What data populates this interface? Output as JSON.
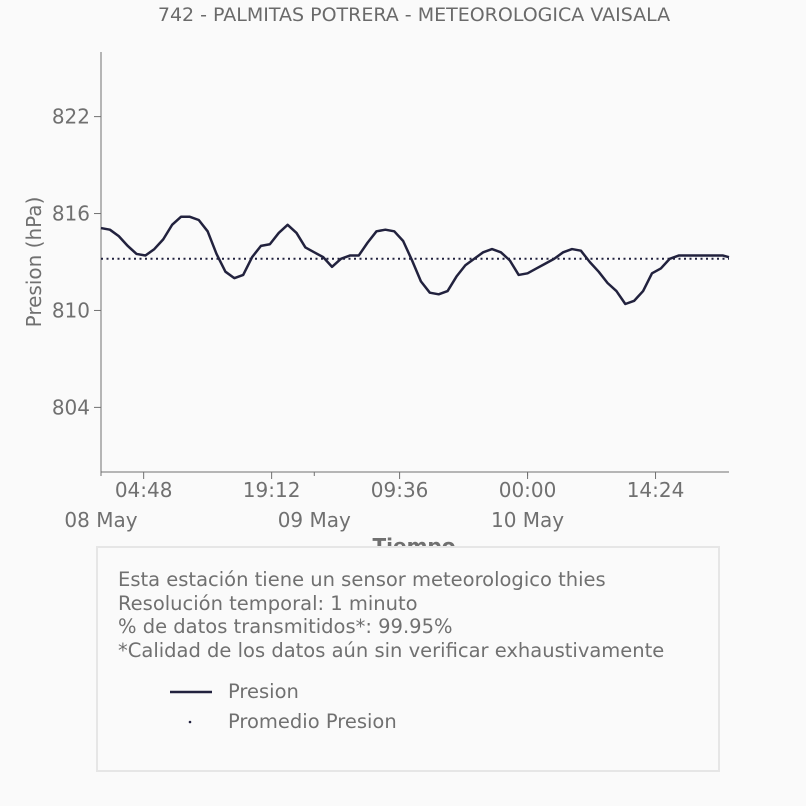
{
  "colors": {
    "line": "#22223e",
    "text": "#707070",
    "axis": "#707070",
    "box_border": "#e6e6e6"
  },
  "info": {
    "lines": [
      "Esta estación tiene un sensor meteorologico thies",
      "Resolución temporal: 1 minuto",
      "% de datos transmitidos*: 99.95%",
      "*Calidad de los datos aún sin verificar exhaustivamente"
    ]
  },
  "legend": {
    "series_label": "Presion",
    "mean_label": "Promedio Presion"
  },
  "chart_data": {
    "type": "line",
    "title": "742 - PALMITAS POTRERA - METEOROLOGICA VAISALA",
    "xlabel": "Tiempo",
    "ylabel": "Presion (hPa)",
    "ylim": [
      800,
      826
    ],
    "yticks": [
      804,
      810,
      816,
      822
    ],
    "xlim": [
      "2025-05-08 00:00",
      "2025-05-10 22:40"
    ],
    "xticks": [
      {
        "x": "2025-05-08 04:48",
        "label": "04:48"
      },
      {
        "x": "2025-05-08 19:12",
        "label": "19:12"
      },
      {
        "x": "2025-05-09 09:36",
        "label": "09:36"
      },
      {
        "x": "2025-05-10 00:00",
        "label": "00:00"
      },
      {
        "x": "2025-05-10 14:24",
        "label": "14:24"
      }
    ],
    "date_labels": [
      {
        "x": "2025-05-08 00:00",
        "label": "08 May"
      },
      {
        "x": "2025-05-09 00:00",
        "label": "09 May"
      },
      {
        "x": "2025-05-10 00:00",
        "label": "10 May"
      }
    ],
    "mean": 813.2,
    "grid": false,
    "legend_position": "below",
    "series": [
      {
        "name": "Presion",
        "x": [
          "2025-05-08 00:00",
          "2025-05-08 01:00",
          "2025-05-08 02:00",
          "2025-05-08 03:00",
          "2025-05-08 04:00",
          "2025-05-08 05:00",
          "2025-05-08 06:00",
          "2025-05-08 07:00",
          "2025-05-08 08:00",
          "2025-05-08 09:00",
          "2025-05-08 10:00",
          "2025-05-08 11:00",
          "2025-05-08 12:00",
          "2025-05-08 13:00",
          "2025-05-08 14:00",
          "2025-05-08 15:00",
          "2025-05-08 16:00",
          "2025-05-08 17:00",
          "2025-05-08 18:00",
          "2025-05-08 19:00",
          "2025-05-08 20:00",
          "2025-05-08 21:00",
          "2025-05-08 22:00",
          "2025-05-08 23:00",
          "2025-05-09 00:00",
          "2025-05-09 01:00",
          "2025-05-09 02:00",
          "2025-05-09 03:00",
          "2025-05-09 04:00",
          "2025-05-09 05:00",
          "2025-05-09 06:00",
          "2025-05-09 07:00",
          "2025-05-09 08:00",
          "2025-05-09 09:00",
          "2025-05-09 10:00",
          "2025-05-09 11:00",
          "2025-05-09 12:00",
          "2025-05-09 13:00",
          "2025-05-09 14:00",
          "2025-05-09 15:00",
          "2025-05-09 16:00",
          "2025-05-09 17:00",
          "2025-05-09 18:00",
          "2025-05-09 19:00",
          "2025-05-09 20:00",
          "2025-05-09 21:00",
          "2025-05-09 22:00",
          "2025-05-09 23:00",
          "2025-05-10 00:00",
          "2025-05-10 01:00",
          "2025-05-10 02:00",
          "2025-05-10 03:00",
          "2025-05-10 04:00",
          "2025-05-10 05:00",
          "2025-05-10 06:00",
          "2025-05-10 07:00",
          "2025-05-10 08:00",
          "2025-05-10 09:00",
          "2025-05-10 10:00",
          "2025-05-10 11:00",
          "2025-05-10 12:00",
          "2025-05-10 13:00",
          "2025-05-10 14:00",
          "2025-05-10 15:00",
          "2025-05-10 16:00",
          "2025-05-10 17:00",
          "2025-05-10 18:00",
          "2025-05-10 19:00",
          "2025-05-10 20:00",
          "2025-05-10 21:00",
          "2025-05-10 22:00",
          "2025-05-10 22:40"
        ],
        "values": [
          815.1,
          815.0,
          814.6,
          814.0,
          813.5,
          813.4,
          813.8,
          814.4,
          815.3,
          815.8,
          815.8,
          815.6,
          814.9,
          813.5,
          812.4,
          812.0,
          812.2,
          813.3,
          814.0,
          814.1,
          814.8,
          815.3,
          814.8,
          813.9,
          813.6,
          813.3,
          812.7,
          813.2,
          813.4,
          813.4,
          814.2,
          814.9,
          815.0,
          814.9,
          814.3,
          813.1,
          811.8,
          811.1,
          811.0,
          811.2,
          812.1,
          812.8,
          813.2,
          813.6,
          813.8,
          813.6,
          813.1,
          812.2,
          812.3,
          812.6,
          812.9,
          813.2,
          813.6,
          813.8,
          813.7,
          813.0,
          812.4,
          811.7,
          811.2,
          810.4,
          810.6,
          811.2,
          812.3,
          812.6,
          813.2,
          813.4,
          813.4,
          813.4,
          813.4,
          813.4,
          813.4,
          813.3
        ]
      }
    ]
  }
}
